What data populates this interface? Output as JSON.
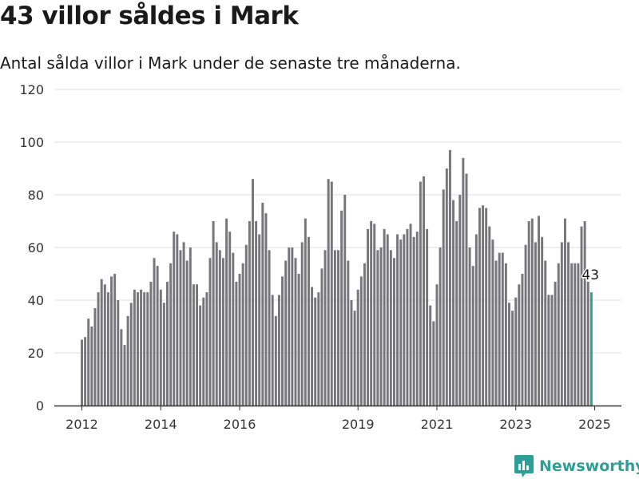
{
  "header": {
    "title": "43 villor såldes i Mark",
    "subtitle": "Antal sålda villor i Mark under de senaste tre månaderna."
  },
  "brand": {
    "name": "Newsworthy",
    "color": "#2f9e97",
    "icon": "newsworthy-logo-icon"
  },
  "colors": {
    "bar": "#76767c",
    "highlight": "#2f9e97",
    "grid": "#dcdcdc",
    "axis": "#333333"
  },
  "chart_data": {
    "type": "bar",
    "x_start_month": "2012-01",
    "x_end_month": "2025-01",
    "x_ticks": [
      "2012",
      "2014",
      "2016",
      "2019",
      "2021",
      "2023",
      "2025"
    ],
    "y_ticks": [
      0,
      20,
      40,
      60,
      80,
      100,
      120
    ],
    "ylim": [
      0,
      120
    ],
    "grid": true,
    "highlight_label": "43",
    "values": [
      25,
      26,
      33,
      30,
      37,
      43,
      48,
      46,
      43,
      49,
      50,
      40,
      29,
      23,
      34,
      39,
      44,
      43,
      44,
      43,
      43,
      47,
      56,
      53,
      44,
      39,
      47,
      54,
      66,
      65,
      59,
      62,
      55,
      60,
      46,
      46,
      38,
      41,
      43,
      56,
      70,
      62,
      59,
      56,
      71,
      66,
      58,
      47,
      50,
      54,
      61,
      70,
      86,
      70,
      65,
      77,
      73,
      59,
      42,
      34,
      42,
      49,
      55,
      60,
      60,
      56,
      50,
      62,
      71,
      64,
      45,
      41,
      43,
      52,
      59,
      86,
      85,
      59,
      59,
      74,
      80,
      55,
      40,
      36,
      44,
      49,
      54,
      67,
      70,
      69,
      59,
      60,
      67,
      65,
      59,
      56,
      65,
      63,
      65,
      67,
      69,
      64,
      66,
      85,
      87,
      67,
      38,
      32,
      46,
      60,
      82,
      90,
      97,
      78,
      70,
      80,
      94,
      88,
      60,
      53,
      65,
      75,
      76,
      75,
      68,
      63,
      55,
      58,
      58,
      54,
      39,
      36,
      41,
      46,
      50,
      61,
      70,
      71,
      62,
      72,
      64,
      55,
      42,
      42,
      47,
      54,
      62,
      71,
      62,
      54,
      54,
      54,
      68,
      70,
      47,
      43
    ]
  }
}
